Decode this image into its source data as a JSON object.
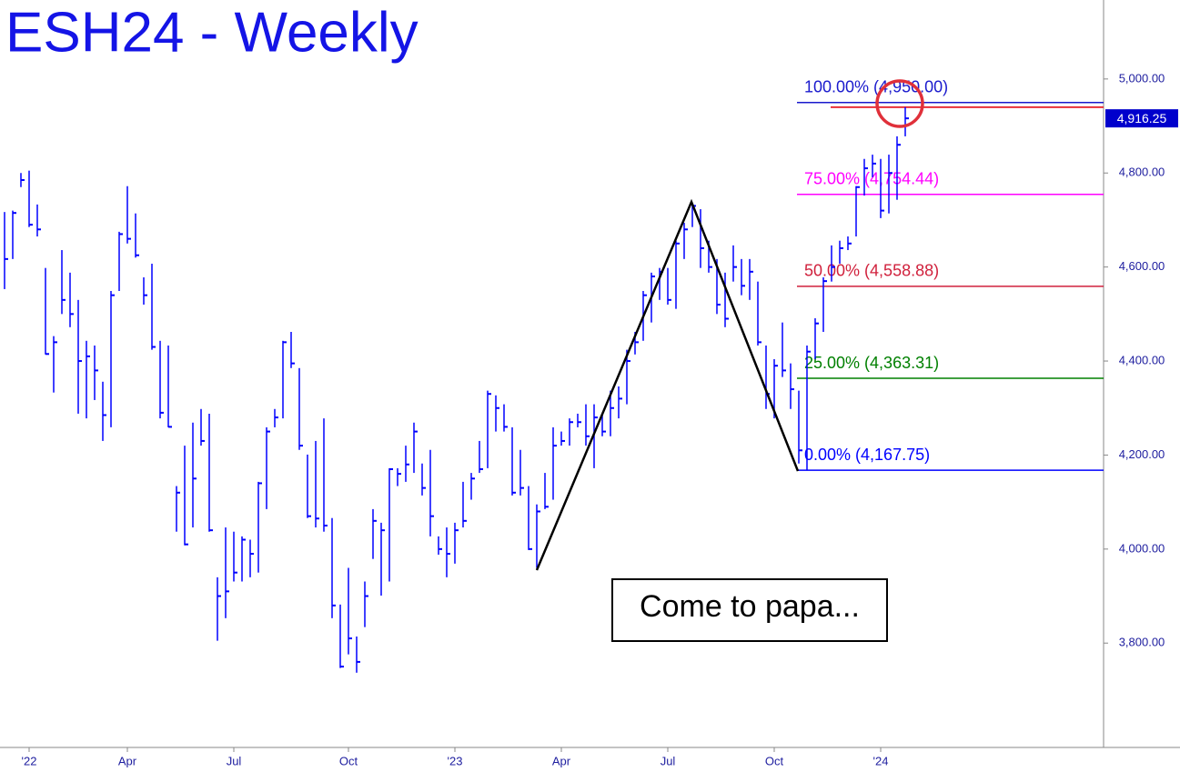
{
  "chart_data": {
    "type": "hlc",
    "title": "ESH24 - Weekly",
    "color": "#0000ff",
    "categories": [
      null,
      null,
      null,
      "'22",
      null,
      null,
      null,
      null,
      null,
      null,
      null,
      null,
      null,
      null,
      null,
      "Apr",
      null,
      null,
      null,
      null,
      null,
      null,
      null,
      null,
      null,
      null,
      null,
      null,
      "Jul",
      null,
      null,
      null,
      null,
      null,
      null,
      null,
      null,
      null,
      null,
      null,
      null,
      null,
      "Oct",
      null,
      null,
      null,
      null,
      null,
      null,
      null,
      null,
      null,
      null,
      null,
      null,
      "'23",
      null,
      null,
      null,
      null,
      null,
      null,
      null,
      null,
      null,
      null,
      null,
      null,
      "Apr",
      null,
      null,
      null,
      null,
      null,
      null,
      null,
      null,
      null,
      null,
      null,
      null,
      "Jul",
      null,
      null,
      null,
      null,
      null,
      null,
      null,
      null,
      null,
      null,
      null,
      null,
      "Oct",
      null,
      null,
      null,
      null,
      null,
      null,
      null,
      null,
      null,
      null,
      null,
      null,
      "'24",
      null,
      null,
      null
    ],
    "high": [
      4717,
      4720,
      4800,
      4805,
      4733,
      4598,
      4453,
      4636,
      4588,
      4530,
      4443,
      4433,
      4356,
      4549,
      4675,
      4772,
      4714,
      4578,
      4607,
      4443,
      4433,
      4134,
      4220,
      4269,
      4298,
      4288,
      3940,
      4046,
      4037,
      4027,
      4020,
      4143,
      4259,
      4298,
      4443,
      4462,
      4385,
      4201,
      4230,
      4278,
      4066,
      3882,
      3960,
      3814,
      3931,
      4085,
      4056,
      4172,
      4172,
      4220,
      4269,
      4182,
      4211,
      4027,
      4046,
      4056,
      4143,
      4162,
      4230,
      4337,
      4327,
      4308,
      4259,
      4211,
      4134,
      4095,
      4162,
      4259,
      4250,
      4278,
      4288,
      4308,
      4308,
      4288,
      4337,
      4346,
      4424,
      4462,
      4549,
      4588,
      4598,
      4598,
      4656,
      4694,
      4733,
      4723,
      4656,
      4617,
      4588,
      4646,
      4617,
      4617,
      4569,
      4433,
      4404,
      4482,
      4395,
      4337,
      4433,
      4491,
      4578,
      4646,
      4656,
      4665,
      4772,
      4830,
      4839,
      4830,
      4839,
      4878,
      4940
    ],
    "low": [
      4553,
      4617,
      4770,
      4685,
      4665,
      4414,
      4333,
      4500,
      4472,
      4288,
      4278,
      4317,
      4230,
      4259,
      4549,
      4650,
      4620,
      4520,
      4424,
      4278,
      4259,
      4037,
      4008,
      4046,
      4220,
      4037,
      3805,
      3853,
      3931,
      3931,
      3940,
      3950,
      4085,
      4259,
      4278,
      4385,
      4211,
      4066,
      4046,
      4037,
      3853,
      3747,
      3776,
      3737,
      3834,
      3979,
      3901,
      3931,
      4134,
      4143,
      4162,
      4114,
      4027,
      3988,
      3940,
      3969,
      4046,
      4105,
      4162,
      4172,
      4250,
      4250,
      4114,
      4114,
      3998,
      3960,
      4085,
      4105,
      4220,
      4220,
      4259,
      4220,
      4172,
      4240,
      4240,
      4278,
      4308,
      4414,
      4443,
      4482,
      4530,
      4520,
      4511,
      4617,
      4685,
      4598,
      4588,
      4500,
      4472,
      4569,
      4540,
      4530,
      4433,
      4298,
      4278,
      4366,
      4298,
      4182,
      4168,
      4404,
      4462,
      4569,
      4607,
      4636,
      4665,
      4752,
      4791,
      4704,
      4714,
      4743,
      4878
    ],
    "close": [
      4617,
      4715,
      4785,
      4690,
      4680,
      4415,
      4440,
      4530,
      4500,
      4400,
      4410,
      4380,
      4285,
      4540,
      4670,
      4660,
      4625,
      4540,
      4430,
      4290,
      4260,
      4120,
      4010,
      4150,
      4230,
      4040,
      3900,
      3910,
      3950,
      4020,
      3990,
      4140,
      4250,
      4280,
      4440,
      4395,
      4220,
      4070,
      4065,
      4050,
      3880,
      3750,
      3810,
      3760,
      3900,
      4060,
      4040,
      4170,
      4160,
      4180,
      4250,
      4130,
      4070,
      4000,
      3990,
      4040,
      4060,
      4150,
      4170,
      4330,
      4300,
      4260,
      4120,
      4130,
      4000,
      4080,
      4090,
      4220,
      4230,
      4270,
      4270,
      4240,
      4280,
      4250,
      4300,
      4320,
      4400,
      4440,
      4540,
      4580,
      4590,
      4530,
      4650,
      4680,
      4730,
      4640,
      4600,
      4520,
      4490,
      4600,
      4560,
      4590,
      4440,
      4330,
      4390,
      4380,
      4340,
      4210,
      4420,
      4480,
      4570,
      4600,
      4640,
      4650,
      4770,
      4810,
      4820,
      4720,
      4800,
      4860,
      4916.25
    ],
    "ylim": [
      3578,
      5168
    ],
    "yticks": [
      {
        "value": 3800,
        "label": "3,800.00"
      },
      {
        "value": 4000,
        "label": "4,000.00"
      },
      {
        "value": 4200,
        "label": "4,200.00"
      },
      {
        "value": 4400,
        "label": "4,400.00"
      },
      {
        "value": 4600,
        "label": "4,600.00"
      },
      {
        "value": 4800,
        "label": "4,800.00"
      },
      {
        "value": 5000,
        "label": "5,000.00"
      }
    ],
    "last_price": {
      "value": 4916.25,
      "label": "4,916.25"
    },
    "levels": [
      {
        "label": "100.00% (4,950.00)",
        "value": 4950,
        "color": "#1a1acd"
      },
      {
        "label": "75.00% (4,754.44)",
        "value": 4754.44,
        "color": "#ff00ff"
      },
      {
        "label": "50.00% (4,558.88)",
        "value": 4558.88,
        "color": "#d0203c"
      },
      {
        "label": "25.00% (4,363.31)",
        "value": 4363.31,
        "color": "#008000"
      },
      {
        "label": "0.00% (4,167.75)",
        "value": 4167.75,
        "color": "#0000ff"
      }
    ],
    "target_line": {
      "value": 4940,
      "color": "#e8303a"
    },
    "annotation": "Come to papa..."
  }
}
